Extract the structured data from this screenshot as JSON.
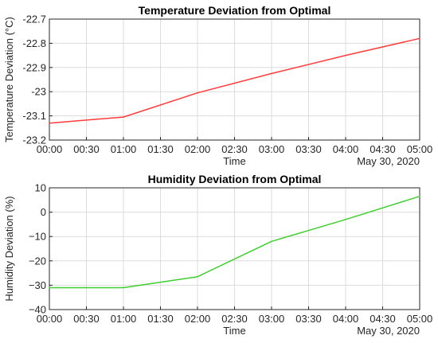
{
  "chart_data": [
    {
      "type": "line",
      "title": "Temperature Deviation from Optimal",
      "xlabel": "Time",
      "ylabel": "Temperature Deviation (°C)",
      "date_label": "May 30, 2020",
      "x_tick_labels": [
        "00:00",
        "00:30",
        "01:00",
        "01:30",
        "02:00",
        "02:30",
        "03:00",
        "03:30",
        "04:00",
        "04:30",
        "05:00"
      ],
      "y_tick_labels": [
        "-22.7",
        "-22.8",
        "-22.9",
        "-23",
        "-23.1",
        "-23.2"
      ],
      "ylim": [
        -23.2,
        -22.7
      ],
      "xlim": [
        "00:00",
        "05:00"
      ],
      "grid": true,
      "series": [
        {
          "x": [
            "00:00",
            "01:00",
            "02:00",
            "03:00",
            "04:00",
            "05:00"
          ],
          "values": [
            -23.13,
            -23.105,
            -23.005,
            -22.925,
            -22.85,
            -22.78
          ],
          "color": "#ff3b3b"
        }
      ]
    },
    {
      "type": "line",
      "title": "Humidity Deviation from Optimal",
      "xlabel": "Time",
      "ylabel": "Humidity Deviation (%)",
      "date_label": "May 30, 2020",
      "x_tick_labels": [
        "00:00",
        "00:30",
        "01:00",
        "01:30",
        "02:00",
        "02:30",
        "03:00",
        "03:30",
        "04:00",
        "04:30",
        "05:00"
      ],
      "y_tick_labels": [
        "10",
        "0",
        "−10",
        "−20",
        "−30",
        "−40"
      ],
      "ylim": [
        -40,
        10
      ],
      "xlim": [
        "00:00",
        "05:00"
      ],
      "grid": true,
      "series": [
        {
          "x": [
            "00:00",
            "01:00",
            "02:00",
            "03:00",
            "04:00",
            "05:00"
          ],
          "values": [
            -31,
            -31,
            -26.5,
            -12,
            -3,
            6.5
          ],
          "color": "#3ecf2e"
        }
      ]
    }
  ]
}
